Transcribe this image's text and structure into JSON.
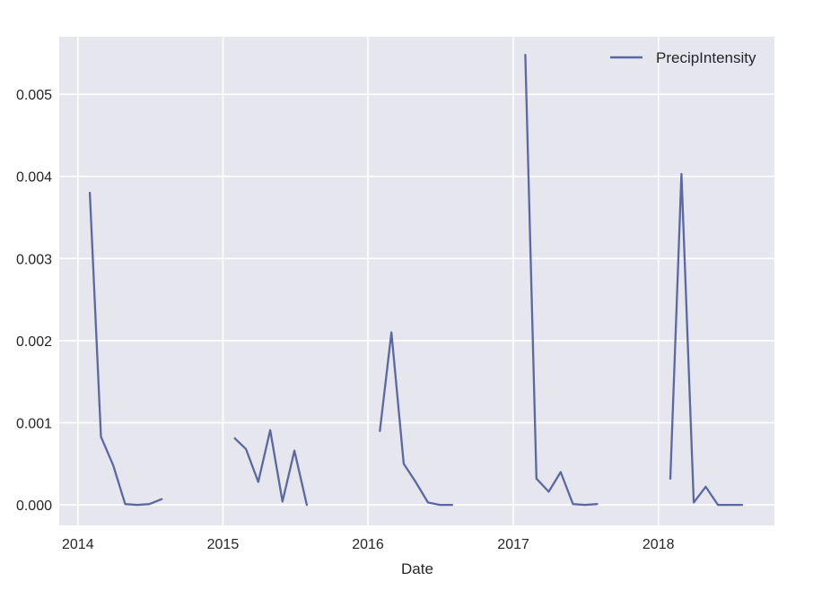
{
  "chart_data": {
    "type": "line",
    "title": "",
    "xlabel": "Date",
    "ylabel": "",
    "x_ticks": [
      "2014",
      "2015",
      "2016",
      "2017",
      "2018"
    ],
    "y_ticks": [
      "0.000",
      "0.001",
      "0.002",
      "0.003",
      "0.004",
      "0.005"
    ],
    "xlim": [
      "2013-11-15",
      "2018-10-20"
    ],
    "ylim": [
      -0.00025,
      0.0057
    ],
    "grid": true,
    "legend": "top-right",
    "colors": {
      "series": "#5b68a3",
      "plot_bg": "#e6e6ef",
      "grid": "#ffffff",
      "text": "#262626"
    },
    "series": [
      {
        "name": "PrecipIntensity",
        "segments": [
          {
            "x": [
              "2014-01-31",
              "2014-02-28",
              "2014-03-31",
              "2014-04-30",
              "2014-05-31",
              "2014-06-30",
              "2014-07-31"
            ],
            "y": [
              0.0038,
              0.00083,
              0.00048,
              1e-05,
              0.0,
              1e-05,
              7e-05
            ]
          },
          {
            "x": [
              "2015-01-31",
              "2015-02-28",
              "2015-03-31",
              "2015-04-30",
              "2015-05-31",
              "2015-06-30",
              "2015-07-31"
            ],
            "y": [
              0.00081,
              0.00068,
              0.00028,
              0.00091,
              4e-05,
              0.00066,
              0.0
            ]
          },
          {
            "x": [
              "2016-01-31",
              "2016-02-29",
              "2016-03-31",
              "2016-04-30",
              "2016-05-31",
              "2016-06-30",
              "2016-07-31"
            ],
            "y": [
              0.0009,
              0.0021,
              0.0005,
              0.00028,
              3e-05,
              0.0,
              0.0
            ]
          },
          {
            "x": [
              "2017-01-31",
              "2017-02-28",
              "2017-03-31",
              "2017-04-30",
              "2017-05-31",
              "2017-06-30",
              "2017-07-31"
            ],
            "y": [
              0.00548,
              0.00032,
              0.00016,
              0.0004,
              1e-05,
              0.0,
              1e-05
            ]
          },
          {
            "x": [
              "2018-01-31",
              "2018-02-28",
              "2018-03-31",
              "2018-04-30",
              "2018-05-31",
              "2018-06-30",
              "2018-07-31"
            ],
            "y": [
              0.00032,
              0.00403,
              3e-05,
              0.00022,
              0.0,
              0.0,
              0.0
            ]
          }
        ]
      }
    ]
  }
}
